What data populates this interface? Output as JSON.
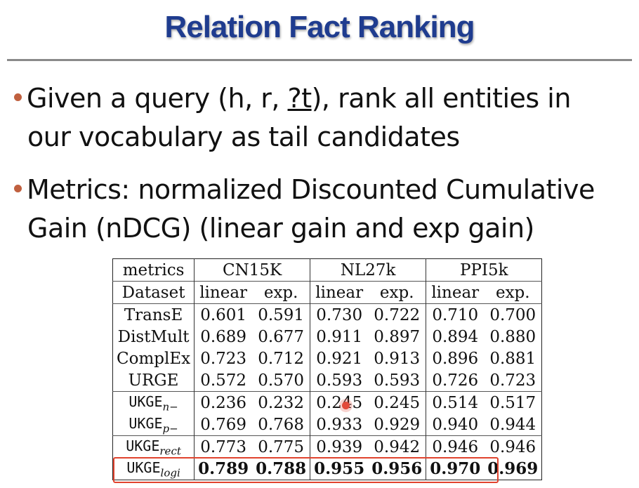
{
  "slide": {
    "title": "Relation Fact Ranking",
    "bullets": [
      {
        "line1_prefix": "Given a query (h, r, ",
        "line1_target": "?t",
        "line1_suffix": "), rank all entities in",
        "line2": "our vocabulary as tail candidates"
      },
      {
        "line1": "Metrics: normalized Discounted Cumulative",
        "line2": "Gain (nDCG) (linear gain and exp gain)"
      }
    ]
  },
  "table": {
    "header1": {
      "label": "metrics",
      "groups": [
        "CN15K",
        "NL27k",
        "PPI5k"
      ]
    },
    "header2": {
      "label": "Dataset",
      "sub": [
        "linear",
        "exp.",
        "linear",
        "exp.",
        "linear",
        "exp."
      ]
    },
    "rows": [
      {
        "model": "TransE",
        "values": [
          "0.601",
          "0.591",
          "0.730",
          "0.722",
          "0.710",
          "0.700"
        ]
      },
      {
        "model": "DistMult",
        "values": [
          "0.689",
          "0.677",
          "0.911",
          "0.897",
          "0.894",
          "0.880"
        ]
      },
      {
        "model": "ComplEx",
        "values": [
          "0.723",
          "0.712",
          "0.921",
          "0.913",
          "0.896",
          "0.881"
        ]
      },
      {
        "model": "URGE",
        "values": [
          "0.572",
          "0.570",
          "0.593",
          "0.593",
          "0.726",
          "0.723"
        ]
      },
      {
        "model": "UKGE",
        "subscript": "n−",
        "values": [
          "0.236",
          "0.232",
          "0.245",
          "0.245",
          "0.514",
          "0.517"
        ]
      },
      {
        "model": "UKGE",
        "subscript": "p−",
        "values": [
          "0.769",
          "0.768",
          "0.933",
          "0.929",
          "0.940",
          "0.944"
        ]
      },
      {
        "model": "UKGE",
        "subscript": "rect",
        "values": [
          "0.773",
          "0.775",
          "0.939",
          "0.942",
          "0.946",
          "0.946"
        ]
      },
      {
        "model": "UKGE",
        "subscript": "logi",
        "values": [
          "0.789",
          "0.788",
          "0.955",
          "0.956",
          "0.970",
          "0.969"
        ]
      }
    ]
  },
  "colors": {
    "title": "#1f3c8f",
    "bullet": "#c0603f",
    "highlight": "#e0432e"
  }
}
